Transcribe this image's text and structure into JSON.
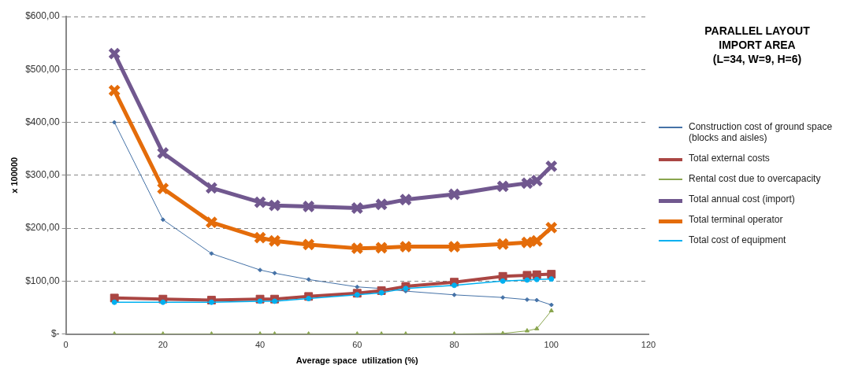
{
  "chart_data": {
    "type": "line",
    "title": "PARALLEL LAYOUT\nIMPORT AREA\n(L=34, W=9, H=6)",
    "xlabel": "Average space  utilization (%)",
    "ylabel": "x 100000",
    "x": [
      10,
      20,
      30,
      40,
      43,
      50,
      60,
      65,
      70,
      80,
      90,
      95,
      97,
      100
    ],
    "series": [
      {
        "name": "Construction cost of ground space (blocks and aisles)",
        "color": "#4572a7",
        "marker": "diamond",
        "values": [
          400,
          216,
          152,
          121,
          115,
          103,
          89,
          86,
          81,
          74,
          69,
          65,
          64,
          55
        ]
      },
      {
        "name": "Total external costs",
        "color": "#aa4643",
        "marker": "square",
        "values": [
          68,
          66,
          64,
          66,
          66,
          71,
          77,
          82,
          90,
          98,
          109,
          111,
          112,
          113
        ]
      },
      {
        "name": "Rental cost due to overcapacity",
        "color": "#89a54e",
        "marker": "triangle",
        "values": [
          0,
          0,
          0,
          0,
          0,
          0,
          0,
          0,
          0,
          0,
          1,
          6,
          10,
          44
        ]
      },
      {
        "name": "Total annual cost (import)",
        "color": "#71588f",
        "marker": "cross",
        "values": [
          530,
          342,
          276,
          249,
          243,
          241,
          238,
          245,
          254,
          264,
          279,
          285,
          290,
          317
        ]
      },
      {
        "name": "Total terminal operator",
        "color": "#e46c0a",
        "marker": "cross",
        "values": [
          460,
          275,
          211,
          182,
          176,
          169,
          162,
          163,
          165,
          165,
          170,
          173,
          176,
          201
        ]
      },
      {
        "name": "Total cost of equipment",
        "color": "#00b0f0",
        "marker": "circle",
        "values": [
          60,
          60,
          60,
          62,
          62,
          67,
          74,
          78,
          86,
          92,
          100,
          102,
          103,
          104
        ]
      }
    ],
    "xlim": [
      0,
      120
    ],
    "xticks": [
      0,
      20,
      40,
      60,
      80,
      100,
      120
    ],
    "ylim": [
      0,
      600
    ],
    "yticks": [
      {
        "value": 0,
        "label": "$-"
      },
      {
        "value": 100,
        "label": "$100,00"
      },
      {
        "value": 200,
        "label": "$200,00"
      },
      {
        "value": 300,
        "label": "$300,00"
      },
      {
        "value": 400,
        "label": "$400,00"
      },
      {
        "value": 500,
        "label": "$500,00"
      },
      {
        "value": 600,
        "label": "$600,00"
      }
    ],
    "grid": "y",
    "legend": "right"
  }
}
